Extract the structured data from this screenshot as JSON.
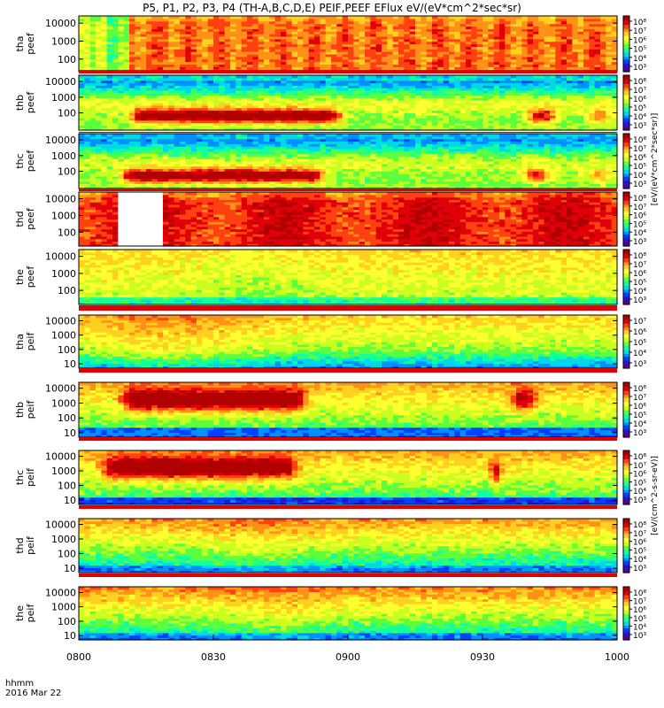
{
  "figure": {
    "title": "P5, P1, P2, P3, P4 (TH-A,B,C,D,E) PEIF,PEEF EFlux eV/(eV*cm^2*sec*sr)",
    "time_axis_label": "hhmm",
    "date_label": "2016 Mar 22"
  },
  "colors": {
    "frame": "#000000",
    "background": "#ffffff",
    "colormap": [
      "#5a008f",
      "#2a10d0",
      "#0040ff",
      "#0090ff",
      "#00d8e8",
      "#10ffa0",
      "#5cff40",
      "#c8ff20",
      "#ffff30",
      "#ffd020",
      "#ff9018",
      "#ff4010",
      "#e00008",
      "#b00000"
    ],
    "flag_bar": "#e00000"
  },
  "chart_data": {
    "type": "heatmap",
    "x_tick_labels": [
      "0800",
      "0830",
      "0900",
      "0930",
      "1000"
    ],
    "x_range_minutes": [
      480,
      600
    ],
    "panels": [
      {
        "id": "tha_peef",
        "label_top": "tha",
        "label_bottom": "peef",
        "y_ticks": [
          "10000",
          "1000",
          "100"
        ],
        "ylim_eV": [
          20,
          25000
        ],
        "cbar_ticks": [
          "10⁸",
          "10⁷",
          "10⁶",
          "10⁵",
          "10⁴",
          "10³"
        ]
      },
      {
        "id": "thb_peef",
        "label_top": "thb",
        "label_bottom": "peef",
        "y_ticks": [
          "10000",
          "1000",
          "100"
        ],
        "ylim_eV": [
          8,
          25000
        ],
        "cbar_ticks": [
          "10⁸",
          "10⁷",
          "10⁶",
          "10⁵",
          "10⁴",
          "10³"
        ]
      },
      {
        "id": "thc_peef",
        "label_top": "thc",
        "label_bottom": "peef",
        "y_ticks": [
          "10000",
          "1000",
          "100"
        ],
        "ylim_eV": [
          8,
          25000
        ],
        "cbar_ticks": [
          "10⁸",
          "10⁷",
          "10⁶",
          "10⁵",
          "10⁴",
          "10³"
        ]
      },
      {
        "id": "thd_peef",
        "label_top": "thd",
        "label_bottom": "peef",
        "y_ticks": [
          "10000",
          "1000",
          "100"
        ],
        "ylim_eV": [
          15,
          25000
        ],
        "cbar_ticks": [
          "10⁸",
          "10⁷",
          "10⁶",
          "10⁵",
          "10⁴",
          "10³"
        ]
      },
      {
        "id": "the_peef",
        "label_top": "the",
        "label_bottom": "peef",
        "y_ticks": [
          "10000",
          "1000",
          "100"
        ],
        "ylim_eV": [
          15,
          25000
        ],
        "cbar_ticks": [
          "10⁸",
          "10⁷",
          "10⁶",
          "10⁵",
          "10⁴",
          "10³"
        ]
      },
      {
        "id": "tha_peif",
        "label_top": "tha",
        "label_bottom": "peif",
        "y_ticks": [
          "10000",
          "1000",
          "100",
          "10"
        ],
        "ylim_eV": [
          5,
          25000
        ],
        "cbar_ticks": [
          "10⁷",
          "10⁶",
          "10⁵",
          "10⁴",
          "10³"
        ]
      },
      {
        "id": "thb_peif",
        "label_top": "thb",
        "label_bottom": "peif",
        "y_ticks": [
          "10000",
          "1000",
          "100",
          "10"
        ],
        "ylim_eV": [
          5,
          25000
        ],
        "cbar_ticks": [
          "10⁸",
          "10⁷",
          "10⁶",
          "10⁵",
          "10⁴",
          "10³"
        ]
      },
      {
        "id": "thc_peif",
        "label_top": "thc",
        "label_bottom": "peif",
        "y_ticks": [
          "10000",
          "1000",
          "100",
          "10"
        ],
        "ylim_eV": [
          5,
          25000
        ],
        "cbar_ticks": [
          "10⁸",
          "10⁷",
          "10⁶",
          "10⁵",
          "10⁴",
          "10³"
        ]
      },
      {
        "id": "thd_peif",
        "label_top": "thd",
        "label_bottom": "peif",
        "y_ticks": [
          "10000",
          "1000",
          "100",
          "10"
        ],
        "ylim_eV": [
          5,
          25000
        ],
        "cbar_ticks": [
          "10⁸",
          "10⁷",
          "10⁶",
          "10⁵",
          "10⁴",
          "10³"
        ]
      },
      {
        "id": "the_peif",
        "label_top": "the",
        "label_bottom": "peif",
        "y_ticks": [
          "10000",
          "1000",
          "100",
          "10"
        ],
        "ylim_eV": [
          5,
          25000
        ],
        "cbar_ticks": [
          "10⁸",
          "10⁷",
          "10⁶",
          "10⁵",
          "10⁴",
          "10³"
        ]
      }
    ],
    "colorbar_label_electron": "[eV/(eV*cm^2*sec*sr)]",
    "colorbar_label_ion": "[eV/(cm^2-s-sr-eV)]"
  }
}
